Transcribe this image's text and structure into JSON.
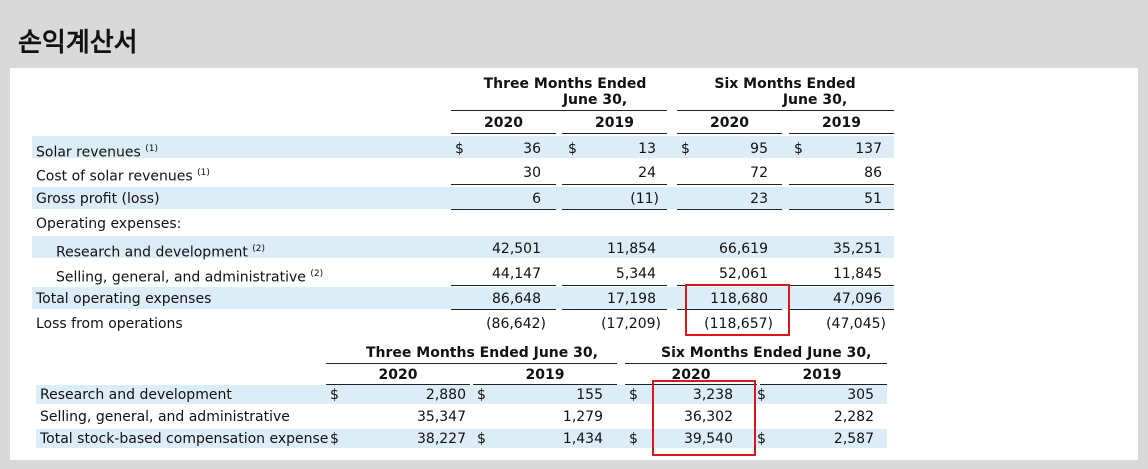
{
  "title": "손익계산서",
  "top_table": {
    "group_headers": [
      {
        "line1": "Three Months Ended",
        "line2": "June 30,"
      },
      {
        "line1": "Six Months Ended",
        "line2": "June 30,"
      }
    ],
    "years": [
      "2020",
      "2019",
      "2020",
      "2019"
    ],
    "currency_symbol": "$",
    "rows": [
      {
        "label": "Solar revenues",
        "note": "(1)",
        "values": [
          "36",
          "13",
          "95",
          "137"
        ]
      },
      {
        "label": "Cost of solar revenues",
        "note": "(1)",
        "values": [
          "30",
          "24",
          "72",
          "86"
        ]
      },
      {
        "label": "Gross profit (loss)",
        "note": "",
        "values": [
          "6",
          "(11)",
          "23",
          "51"
        ]
      },
      {
        "label": "Operating expenses:",
        "note": "",
        "values": [
          "",
          "",
          "",
          ""
        ]
      },
      {
        "label": "Research and development",
        "note": "(2)",
        "values": [
          "42,501",
          "11,854",
          "66,619",
          "35,251"
        ]
      },
      {
        "label": "Selling, general, and administrative",
        "note": "(2)",
        "values": [
          "44,147",
          "5,344",
          "52,061",
          "11,845"
        ]
      },
      {
        "label": "Total operating expenses",
        "note": "",
        "values": [
          "86,648",
          "17,198",
          "118,680",
          "47,096"
        ]
      },
      {
        "label": "Loss from operations",
        "note": "",
        "values": [
          "(86,642)",
          "(17,209)",
          "(118,657)",
          "(47,045)"
        ]
      }
    ]
  },
  "bottom_table": {
    "group_headers": [
      "Three Months Ended June 30,",
      "Six Months Ended June 30,"
    ],
    "years": [
      "2020",
      "2019",
      "2020",
      "2019"
    ],
    "currency_symbol": "$",
    "rows": [
      {
        "label": "Research and development",
        "values": [
          "2,880",
          "155",
          "3,238",
          "305"
        ]
      },
      {
        "label": "Selling, general, and administrative",
        "values": [
          "35,347",
          "1,279",
          "36,302",
          "2,282"
        ]
      },
      {
        "label": "Total stock-based compensation expense",
        "values": [
          "38,227",
          "1,434",
          "39,540",
          "2,587"
        ]
      }
    ]
  },
  "highlight_color": "#d9161c",
  "band_color": "#dcedf8"
}
